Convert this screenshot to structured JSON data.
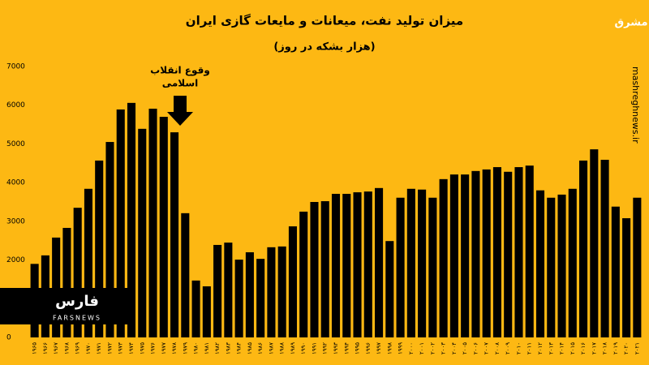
{
  "chart_data": {
    "type": "bar",
    "title": "میزان تولید نفت، میعانات و مایعات گازی ایران",
    "subtitle": "(هزار بشکه در روز)",
    "annotation": [
      "وقوع انقلاب",
      "اسلامی"
    ],
    "watermarks": {
      "site": "mashreghnews.ir",
      "logo": "مشرق",
      "agency": "فارس",
      "agency_latin": "FARSNEWS"
    },
    "categories": [
      "۱۹۶۵",
      "۱۹۶۶",
      "۱۹۶۷",
      "۱۹۶۸",
      "۱۹۶۹",
      "۱۹۷۰",
      "۱۹۷۱",
      "۱۹۷۲",
      "۱۹۷۳",
      "۱۹۷۴",
      "۱۹۷۵",
      "۱۹۷۶",
      "۱۹۷۷",
      "۱۹۷۸",
      "۱۹۷۹",
      "۱۹۸۰",
      "۱۹۸۱",
      "۱۹۸۲",
      "۱۹۸۳",
      "۱۹۸۴",
      "۱۹۸۵",
      "۱۹۸۶",
      "۱۹۸۷",
      "۱۹۸۸",
      "۱۹۸۹",
      "۱۹۹۰",
      "۱۹۹۱",
      "۱۹۹۲",
      "۱۹۹۳",
      "۱۹۹۴",
      "۱۹۹۵",
      "۱۹۹۶",
      "۱۹۹۷",
      "۱۹۹۸",
      "۱۹۹۹",
      "۲۰۰۰",
      "۲۰۰۱",
      "۲۰۰۲",
      "۲۰۰۳",
      "۲۰۰۴",
      "۲۰۰۵",
      "۲۰۰۶",
      "۲۰۰۷",
      "۲۰۰۸",
      "۲۰۰۹",
      "۲۰۱۰",
      "۲۰۱۱",
      "۲۰۱۲",
      "۲۰۱۳",
      "۲۰۱۴",
      "۲۰۱۵",
      "۲۰۱۶",
      "۲۰۱۷",
      "۲۰۱۸",
      "۲۰۱۹",
      "۲۰۲۰",
      "۲۰۲۱"
    ],
    "values": [
      1900,
      2120,
      2580,
      2830,
      3350,
      3840,
      4570,
      5050,
      5890,
      6060,
      5390,
      5910,
      5700,
      5300,
      3210,
      1470,
      1320,
      2390,
      2450,
      2010,
      2200,
      2030,
      2330,
      2350,
      2870,
      3250,
      3500,
      3520,
      3710,
      3710,
      3750,
      3770,
      3860,
      2490,
      3610,
      3840,
      3820,
      3610,
      4090,
      4210,
      4210,
      4300,
      4340,
      4400,
      4280,
      4400,
      4440,
      3800,
      3610,
      3690,
      3840,
      4570,
      4860,
      4590,
      3380,
      3080,
      3610
    ],
    "color": "#000000",
    "background": "#fdb813",
    "ylim": [
      0,
      7000
    ],
    "yticks": [
      0,
      1000,
      2000,
      3000,
      4000,
      5000,
      6000,
      7000
    ],
    "grid": false
  }
}
